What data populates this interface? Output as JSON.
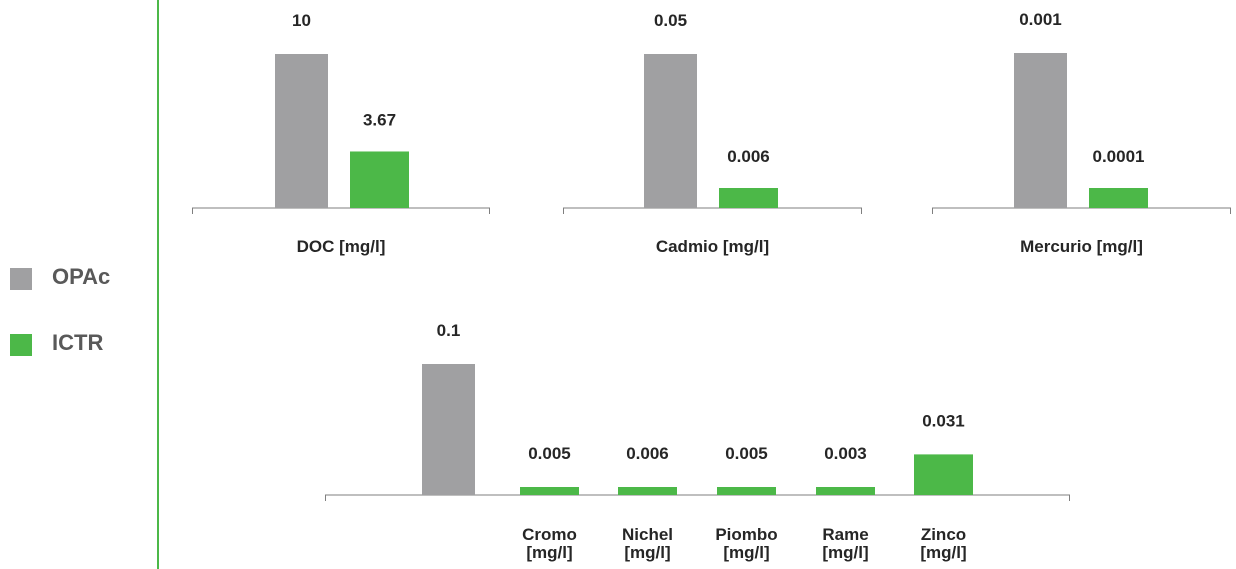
{
  "colors": {
    "opac": "#a0a0a2",
    "ictr": "#4cb848",
    "divider": "#4cb848",
    "axis": "#7f7f7f",
    "text": "#262626",
    "legend_text": "#595959"
  },
  "legend": {
    "items": [
      {
        "name": "OPAc",
        "color": "#a0a0a2"
      },
      {
        "name": "ICTR",
        "color": "#4cb848"
      }
    ]
  },
  "chart_data": [
    {
      "type": "bar",
      "categories": [
        "DOC [mg/l]"
      ],
      "series": [
        {
          "name": "OPAc",
          "values": [
            10
          ],
          "labels": [
            "10"
          ]
        },
        {
          "name": "ICTR",
          "values": [
            3.67
          ],
          "labels": [
            "3.67"
          ]
        }
      ],
      "ylim": [
        0,
        10
      ]
    },
    {
      "type": "bar",
      "categories": [
        "Cadmio [mg/l]"
      ],
      "series": [
        {
          "name": "OPAc",
          "values": [
            0.05
          ],
          "labels": [
            "0.05"
          ]
        },
        {
          "name": "ICTR",
          "values": [
            0.006
          ],
          "labels": [
            "0.006"
          ]
        }
      ],
      "ylim": [
        0,
        0.05
      ]
    },
    {
      "type": "bar",
      "categories": [
        "Mercurio [mg/l]"
      ],
      "series": [
        {
          "name": "OPAc",
          "values": [
            0.001
          ],
          "labels": [
            "0.001"
          ]
        },
        {
          "name": "ICTR",
          "values": [
            0.0001
          ],
          "labels": [
            "0.0001"
          ]
        }
      ],
      "ylim": [
        0,
        0.001
      ]
    },
    {
      "type": "bar",
      "categories": [
        "",
        "Cromo [mg/l]",
        "Nichel [mg/l]",
        "Piombo [mg/l]",
        "Rame [mg/l]",
        "Zinco [mg/l]"
      ],
      "series": [
        {
          "name": "OPAc",
          "values": [
            0.1,
            null,
            null,
            null,
            null,
            null
          ],
          "labels": [
            "0.1",
            "",
            "",
            "",
            "",
            ""
          ]
        },
        {
          "name": "ICTR",
          "values": [
            null,
            0.005,
            0.006,
            0.005,
            0.003,
            0.031
          ],
          "labels": [
            "",
            "0.005",
            "0.006",
            "0.005",
            "0.003",
            "0.031"
          ]
        }
      ],
      "ylim": [
        0,
        0.1
      ]
    }
  ]
}
